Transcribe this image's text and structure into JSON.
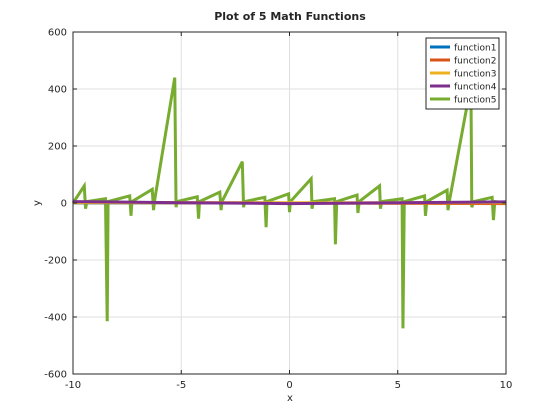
{
  "chart_data": {
    "type": "line",
    "title": "Plot of 5 Math Functions",
    "xlabel": "x",
    "ylabel": "y",
    "xlim": [
      -10,
      10
    ],
    "ylim": [
      -600,
      600
    ],
    "xticks": [
      -10,
      -5,
      0,
      5,
      10
    ],
    "xtick_labels": [
      "-10",
      "-5",
      "0",
      "5",
      "10"
    ],
    "yticks": [
      -600,
      -400,
      -200,
      0,
      200,
      400,
      600
    ],
    "ytick_labels": [
      "-600",
      "-400",
      "-200",
      "0",
      "200",
      "400",
      "600"
    ],
    "grid": true,
    "legend_position": "top-right",
    "series": [
      {
        "name": "function1",
        "color": "#0072bd",
        "x": [
          -10,
          10
        ],
        "y": [
          0,
          0
        ]
      },
      {
        "name": "function2",
        "color": "#d95319",
        "x": [
          -10,
          10
        ],
        "y": [
          2,
          -2
        ]
      },
      {
        "name": "function3",
        "color": "#edb120",
        "x": [
          -10,
          10
        ],
        "y": [
          1,
          1
        ]
      },
      {
        "name": "function4",
        "color": "#7e2f8e",
        "x": [
          -10,
          -5,
          0,
          5,
          10
        ],
        "y": [
          5,
          1,
          -2,
          1,
          4
        ]
      },
      {
        "name": "function5",
        "color": "#77ac30",
        "x": [
          -10,
          -9.48,
          -9.42,
          -9.36,
          -8.5,
          -8.42,
          -8.38,
          -7.38,
          -7.32,
          -7.28,
          -6.34,
          -6.28,
          -6.24,
          -5.3,
          -5.24,
          -5.2,
          -4.26,
          -4.2,
          -4.16,
          -3.22,
          -3.16,
          -3.12,
          -2.18,
          -2.12,
          -2.08,
          -1.14,
          -1.08,
          -1.04,
          -0.04,
          0,
          0.04,
          1.0,
          1.04,
          1.1,
          2.08,
          2.12,
          2.18,
          3.12,
          3.16,
          3.22,
          4.16,
          4.2,
          4.26,
          5.2,
          5.24,
          5.3,
          6.24,
          6.28,
          6.34,
          7.28,
          7.32,
          7.38,
          8.38,
          8.42,
          8.5,
          9.36,
          9.42,
          9.48,
          10
        ],
        "y": [
          0,
          60,
          -20,
          5,
          15,
          -415,
          5,
          25,
          -45,
          5,
          48,
          -25,
          5,
          440,
          -15,
          5,
          22,
          -55,
          5,
          38,
          -25,
          5,
          145,
          -15,
          5,
          20,
          -85,
          5,
          32,
          -32,
          5,
          85,
          -20,
          5,
          15,
          -145,
          5,
          28,
          -35,
          5,
          60,
          -20,
          5,
          15,
          -440,
          5,
          25,
          -45,
          5,
          45,
          -25,
          5,
          415,
          -15,
          5,
          20,
          -60,
          5,
          0
        ]
      }
    ]
  }
}
